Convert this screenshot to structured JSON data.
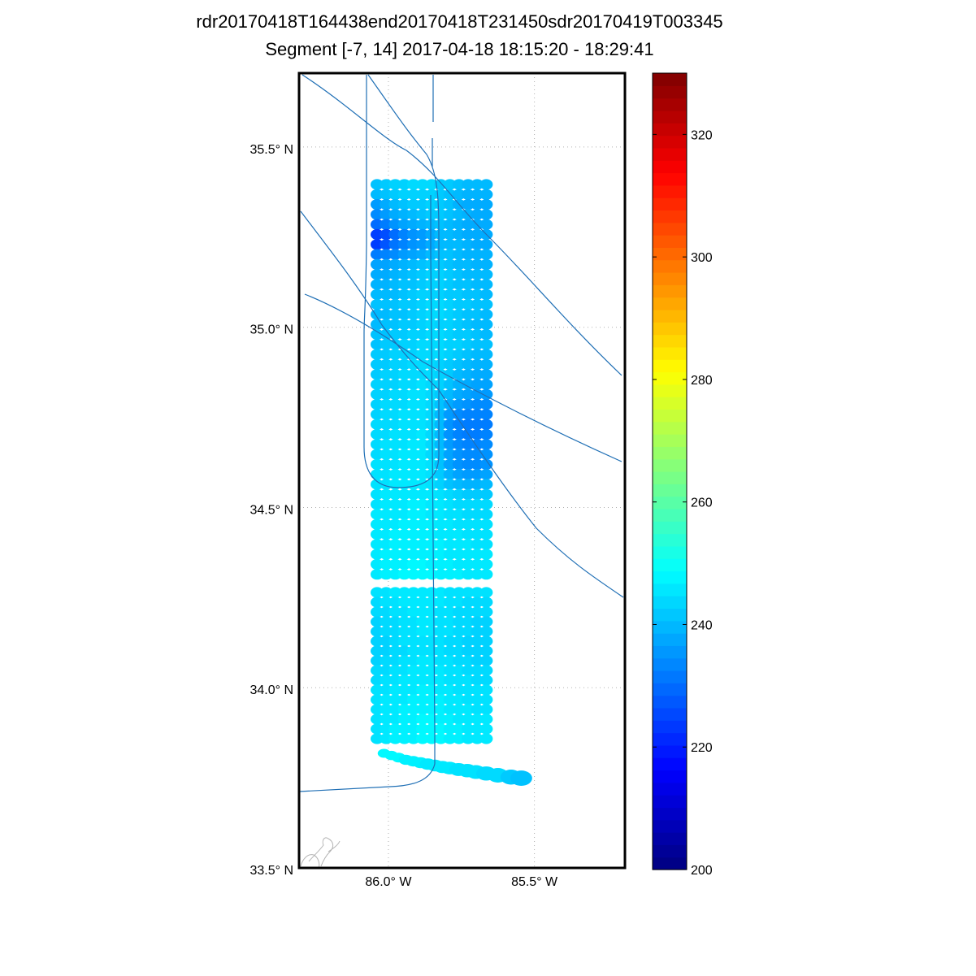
{
  "title_line1": "rdr20170418T164438end20170418T231450sdr20170419T003345",
  "title_line2": "Segment [-7, 14] 2017-04-18 18:15:20 - 18:29:41",
  "chart_data": {
    "type": "scatter",
    "projection": "map",
    "lat_ticks": [
      {
        "value": 33.5,
        "label": "33.5° N"
      },
      {
        "value": 34.0,
        "label": "34.0° N"
      },
      {
        "value": 34.5,
        "label": "34.5° N"
      },
      {
        "value": 35.0,
        "label": "35.0° N"
      },
      {
        "value": 35.5,
        "label": "35.5° N"
      }
    ],
    "lon_ticks": [
      {
        "value": -86.0,
        "label": "86.0° W"
      },
      {
        "value": -85.5,
        "label": "85.5° W"
      }
    ],
    "lat_range": [
      33.5,
      35.705
    ],
    "lon_range": [
      -86.306,
      -85.19
    ],
    "grid": true,
    "colorbar": {
      "range": [
        200,
        330
      ],
      "colormap": "jet",
      "ticks": [
        200,
        220,
        240,
        260,
        280,
        300,
        320
      ],
      "placement": "right"
    },
    "block1_rows": [
      [
        241,
        242,
        243,
        243,
        244,
        244,
        244,
        242,
        242,
        241,
        240,
        240,
        240
      ],
      [
        240,
        241,
        242,
        243,
        243,
        243,
        243,
        242,
        241,
        240,
        239,
        239,
        239
      ],
      [
        236,
        238,
        240,
        241,
        242,
        242,
        243,
        242,
        241,
        239,
        238,
        238,
        238
      ],
      [
        234,
        236,
        238,
        239,
        240,
        241,
        242,
        242,
        241,
        240,
        239,
        238,
        238
      ],
      [
        230,
        232,
        235,
        237,
        238,
        239,
        240,
        241,
        240,
        239,
        238,
        238,
        238
      ],
      [
        224,
        226,
        230,
        233,
        235,
        236,
        238,
        240,
        240,
        239,
        238,
        238,
        238
      ],
      [
        224,
        227,
        231,
        233,
        235,
        236,
        238,
        240,
        240,
        240,
        239,
        238,
        238
      ],
      [
        232,
        233,
        234,
        236,
        237,
        238,
        240,
        241,
        241,
        240,
        239,
        239,
        239
      ],
      [
        237,
        237,
        238,
        239,
        240,
        241,
        242,
        242,
        241,
        240,
        240,
        239,
        239
      ],
      [
        238,
        238,
        239,
        240,
        241,
        242,
        243,
        243,
        242,
        241,
        240,
        240,
        240
      ],
      [
        239,
        239,
        240,
        241,
        241,
        242,
        243,
        243,
        242,
        241,
        241,
        240,
        240
      ],
      [
        240,
        240,
        240,
        241,
        242,
        243,
        243,
        243,
        242,
        242,
        241,
        241,
        240
      ],
      [
        241,
        241,
        241,
        242,
        242,
        243,
        244,
        244,
        243,
        242,
        242,
        241,
        241
      ],
      [
        240,
        240,
        241,
        241,
        242,
        243,
        244,
        244,
        243,
        242,
        241,
        241,
        240
      ],
      [
        240,
        241,
        241,
        242,
        242,
        243,
        244,
        243,
        243,
        242,
        241,
        240,
        240
      ],
      [
        241,
        241,
        242,
        242,
        243,
        243,
        244,
        244,
        243,
        242,
        242,
        241,
        240
      ],
      [
        241,
        242,
        242,
        243,
        243,
        244,
        244,
        244,
        243,
        243,
        242,
        241,
        241
      ],
      [
        242,
        242,
        243,
        243,
        243,
        244,
        244,
        244,
        243,
        242,
        241,
        240,
        240
      ],
      [
        242,
        242,
        243,
        243,
        244,
        244,
        244,
        243,
        242,
        241,
        240,
        239,
        239
      ],
      [
        242,
        243,
        243,
        244,
        244,
        244,
        244,
        243,
        242,
        240,
        239,
        238,
        238
      ],
      [
        243,
        243,
        243,
        244,
        244,
        245,
        244,
        243,
        241,
        239,
        238,
        237,
        237
      ],
      [
        243,
        243,
        244,
        244,
        245,
        245,
        244,
        242,
        240,
        238,
        237,
        236,
        236
      ],
      [
        243,
        244,
        244,
        244,
        245,
        245,
        244,
        241,
        238,
        236,
        235,
        234,
        234
      ],
      [
        243,
        244,
        244,
        245,
        245,
        245,
        244,
        240,
        236,
        234,
        233,
        233,
        233
      ],
      [
        244,
        244,
        244,
        245,
        245,
        245,
        244,
        240,
        235,
        233,
        232,
        232,
        232
      ],
      [
        244,
        244,
        245,
        245,
        245,
        246,
        244,
        240,
        235,
        233,
        232,
        232,
        233
      ],
      [
        244,
        245,
        245,
        245,
        246,
        246,
        244,
        240,
        236,
        234,
        233,
        233,
        234
      ],
      [
        244,
        245,
        245,
        246,
        246,
        246,
        244,
        241,
        237,
        235,
        234,
        234,
        235
      ],
      [
        245,
        245,
        245,
        246,
        246,
        246,
        245,
        241,
        237,
        235,
        234,
        234,
        235
      ],
      [
        245,
        245,
        246,
        246,
        246,
        246,
        245,
        242,
        239,
        237,
        236,
        236,
        237
      ],
      [
        245,
        245,
        246,
        246,
        246,
        246,
        245,
        243,
        241,
        240,
        239,
        239,
        240
      ],
      [
        245,
        246,
        246,
        246,
        246,
        246,
        246,
        245,
        244,
        243,
        242,
        242,
        242
      ],
      [
        245,
        246,
        246,
        246,
        247,
        247,
        246,
        246,
        245,
        244,
        244,
        244,
        244
      ],
      [
        246,
        246,
        246,
        246,
        247,
        247,
        246,
        246,
        245,
        245,
        244,
        244,
        244
      ],
      [
        246,
        246,
        246,
        247,
        247,
        247,
        247,
        246,
        246,
        245,
        245,
        245,
        245
      ],
      [
        246,
        246,
        247,
        247,
        247,
        247,
        247,
        246,
        246,
        246,
        245,
        245,
        245
      ],
      [
        246,
        246,
        247,
        247,
        247,
        247,
        247,
        247,
        246,
        246,
        246,
        245,
        245
      ],
      [
        246,
        247,
        247,
        247,
        247,
        247,
        247,
        247,
        246,
        246,
        246,
        246,
        246
      ],
      [
        246,
        247,
        247,
        247,
        248,
        248,
        247,
        247,
        247,
        246,
        246,
        246,
        246
      ],
      [
        246,
        247,
        247,
        248,
        248,
        248,
        248,
        247,
        247,
        247,
        246,
        246,
        246
      ]
    ],
    "block2_rows": [
      [
        245,
        245,
        246,
        246,
        246,
        246,
        246,
        246,
        245,
        245,
        245,
        245,
        245
      ],
      [
        244,
        245,
        245,
        246,
        246,
        246,
        246,
        246,
        245,
        245,
        244,
        244,
        244
      ],
      [
        244,
        244,
        245,
        245,
        246,
        246,
        246,
        245,
        245,
        244,
        244,
        244,
        244
      ],
      [
        243,
        244,
        244,
        245,
        245,
        246,
        246,
        245,
        245,
        244,
        244,
        243,
        243
      ],
      [
        243,
        244,
        244,
        245,
        245,
        246,
        246,
        245,
        245,
        244,
        244,
        243,
        243
      ],
      [
        243,
        243,
        244,
        245,
        245,
        245,
        245,
        245,
        244,
        244,
        243,
        243,
        243
      ],
      [
        243,
        243,
        244,
        244,
        245,
        245,
        245,
        245,
        244,
        244,
        243,
        243,
        243
      ],
      [
        243,
        244,
        244,
        245,
        245,
        246,
        246,
        245,
        245,
        244,
        244,
        243,
        243
      ],
      [
        244,
        244,
        245,
        245,
        246,
        246,
        246,
        246,
        245,
        245,
        244,
        244,
        244
      ],
      [
        244,
        245,
        245,
        246,
        246,
        246,
        246,
        246,
        245,
        245,
        245,
        244,
        244
      ],
      [
        245,
        245,
        246,
        246,
        246,
        247,
        247,
        246,
        246,
        245,
        245,
        245,
        245
      ],
      [
        245,
        246,
        246,
        246,
        247,
        247,
        247,
        247,
        246,
        246,
        245,
        245,
        245
      ],
      [
        245,
        246,
        246,
        247,
        247,
        247,
        247,
        247,
        246,
        246,
        246,
        245,
        245
      ],
      [
        245,
        246,
        246,
        247,
        247,
        248,
        248,
        247,
        247,
        246,
        246,
        246,
        246
      ],
      [
        245,
        246,
        247,
        247,
        247,
        248,
        248,
        248,
        247,
        247,
        246,
        246,
        246
      ],
      [
        245,
        246,
        247,
        247,
        247,
        248,
        248,
        248,
        247,
        247,
        246,
        246,
        246
      ]
    ],
    "track_points": [
      {
        "lon": -86.015,
        "lat": 33.818,
        "value": 248
      },
      {
        "lon": -85.99,
        "lat": 33.812,
        "value": 248
      },
      {
        "lon": -85.965,
        "lat": 33.806,
        "value": 248
      },
      {
        "lon": -85.94,
        "lat": 33.8,
        "value": 247
      },
      {
        "lon": -85.915,
        "lat": 33.796,
        "value": 247
      },
      {
        "lon": -85.89,
        "lat": 33.792,
        "value": 247
      },
      {
        "lon": -85.865,
        "lat": 33.788,
        "value": 246
      },
      {
        "lon": -85.84,
        "lat": 33.784,
        "value": 246
      },
      {
        "lon": -85.815,
        "lat": 33.78,
        "value": 246
      },
      {
        "lon": -85.79,
        "lat": 33.777,
        "value": 246
      },
      {
        "lon": -85.76,
        "lat": 33.773,
        "value": 245
      },
      {
        "lon": -85.73,
        "lat": 33.77,
        "value": 245
      },
      {
        "lon": -85.7,
        "lat": 33.766,
        "value": 245
      },
      {
        "lon": -85.665,
        "lat": 33.762,
        "value": 244
      },
      {
        "lon": -85.625,
        "lat": 33.757,
        "value": 244
      },
      {
        "lon": -85.58,
        "lat": 33.752,
        "value": 242
      },
      {
        "lon": -85.545,
        "lat": 33.749,
        "value": 241
      }
    ]
  },
  "colors": {
    "track_line": "#1f6fb5",
    "grid": "#b0b0b0",
    "coast": "#b4b4b4"
  }
}
